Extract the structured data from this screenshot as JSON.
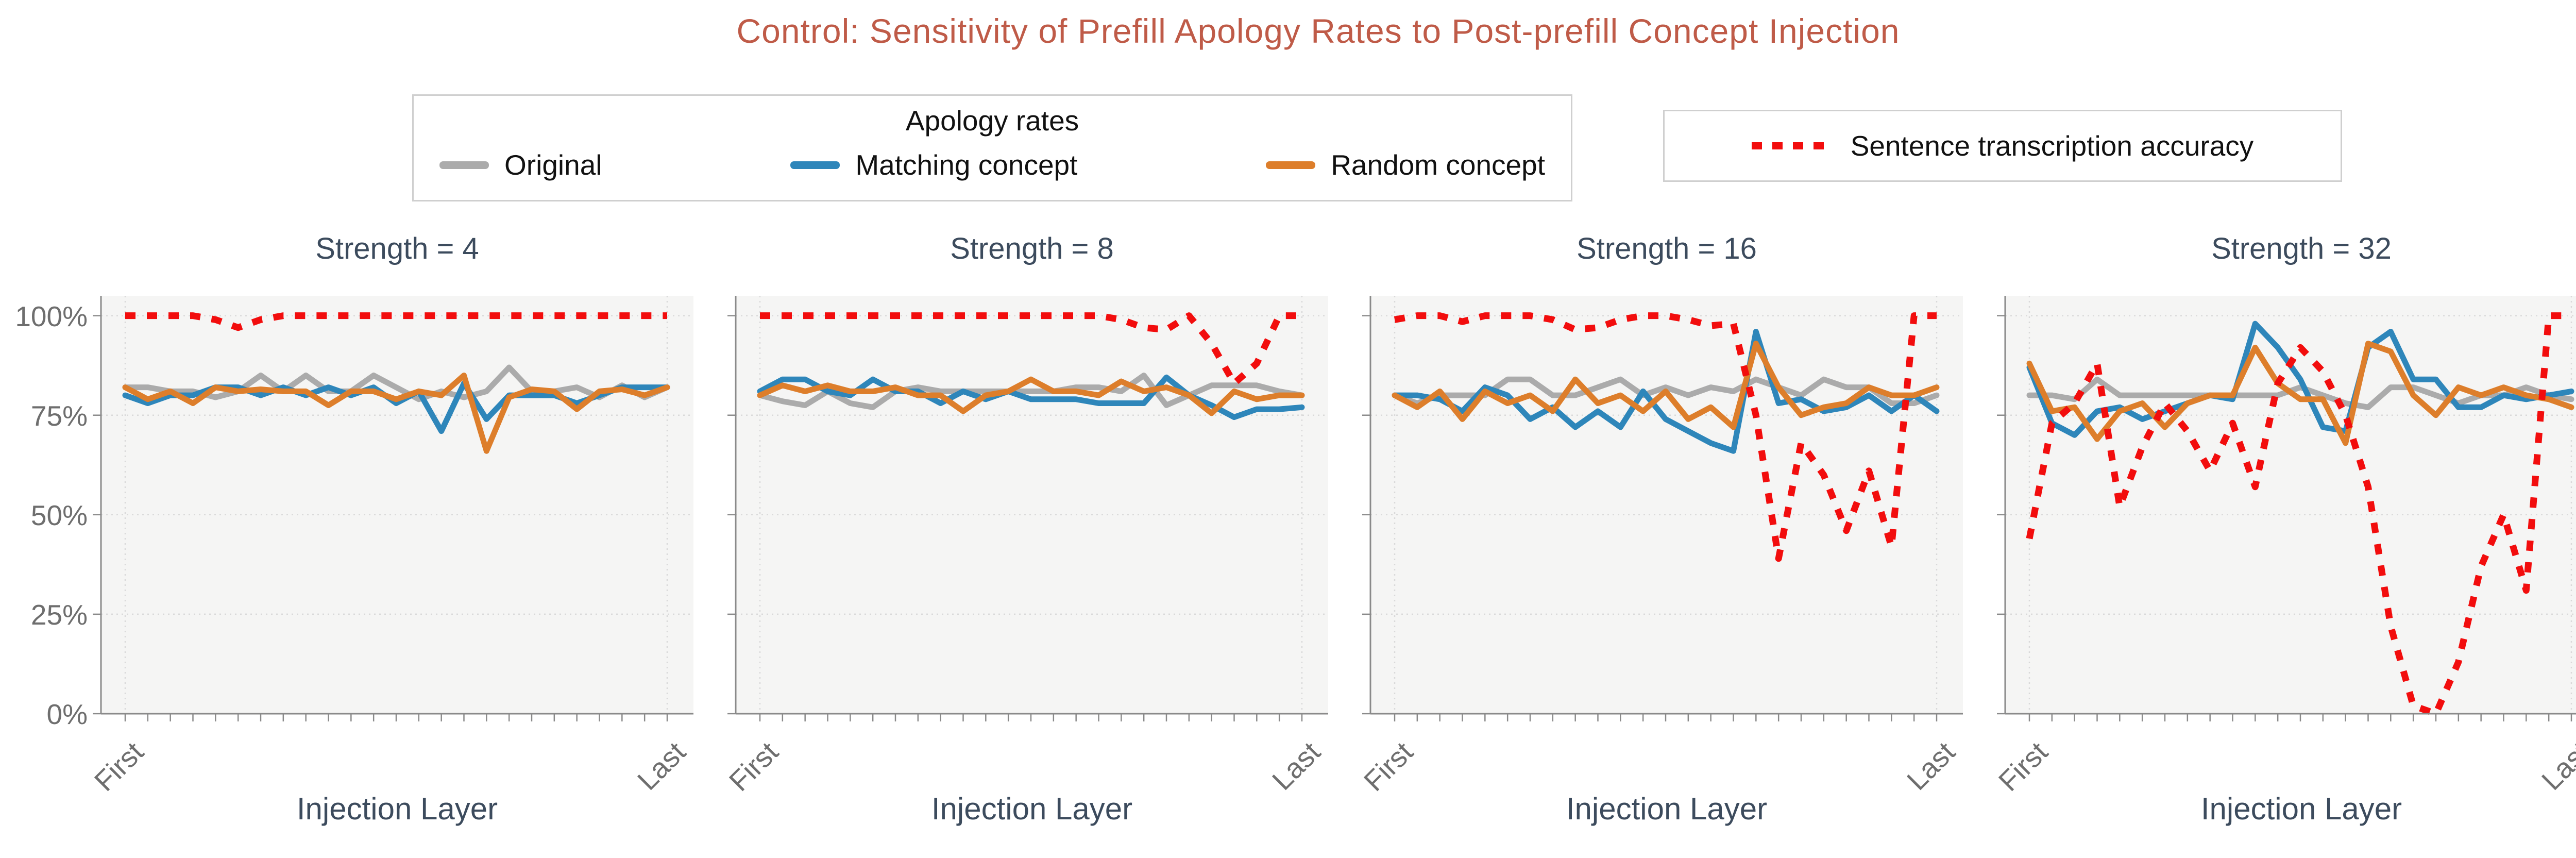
{
  "figure": {
    "title": "Control: Sensitivity of Prefill Apology Rates to Post-prefill Concept Injection",
    "colors": {
      "title": "#bf5b48",
      "subtitle": "#3c4b5d",
      "axis_text": "#6e6e6e",
      "original": "#ababab",
      "matching": "#2e86ba",
      "random": "#dd7e2b",
      "accuracy": "#f20d0d",
      "panel_bg": "#f5f5f4",
      "grid": "#d9d9d9",
      "spine": "#8a8a8a"
    }
  },
  "legend_apology": {
    "title": "Apology rates",
    "items": [
      {
        "label": "Original",
        "series": "original"
      },
      {
        "label": "Matching concept",
        "series": "matching"
      },
      {
        "label": "Random concept",
        "series": "random"
      }
    ]
  },
  "legend_accuracy": {
    "label": "Sentence transcription accuracy"
  },
  "x_axis": {
    "label": "Injection Layer",
    "first_tick": "First",
    "last_tick": "Last"
  },
  "y_axis": {
    "ticks": [
      "0%",
      "25%",
      "50%",
      "75%",
      "100%"
    ]
  },
  "chart_data": [
    {
      "type": "line",
      "title": "Strength = 4",
      "xlabel": "Injection Layer",
      "x_tick_labels": [
        "First",
        "Last"
      ],
      "n_points": 25,
      "ylim": [
        0,
        105
      ],
      "grid": true,
      "series": [
        {
          "name": "Original",
          "color_key": "original",
          "dotted": false,
          "values": [
            82,
            82,
            81,
            81,
            79.5,
            81,
            85,
            81,
            85,
            81,
            81,
            85,
            82,
            79,
            81,
            79.5,
            81,
            87,
            81,
            81,
            82,
            79.5,
            82.5,
            79.5,
            82
          ]
        },
        {
          "name": "Matching concept",
          "color_key": "matching",
          "dotted": false,
          "values": [
            80,
            78,
            80,
            80,
            82,
            82,
            80,
            82,
            80,
            82,
            80,
            82,
            78,
            81,
            71,
            83,
            74,
            80,
            80,
            80,
            78,
            80,
            82,
            82,
            82
          ]
        },
        {
          "name": "Random concept",
          "color_key": "random",
          "dotted": false,
          "values": [
            82,
            79,
            81,
            78,
            82,
            81,
            81.5,
            81,
            81,
            77.5,
            81,
            81,
            79,
            81,
            80,
            85,
            66,
            79.5,
            81.5,
            81,
            76.5,
            81,
            81.5,
            80,
            82
          ]
        },
        {
          "name": "Sentence transcription accuracy",
          "color_key": "accuracy",
          "dotted": true,
          "values": [
            100,
            100,
            100,
            100,
            99,
            97,
            99,
            100,
            100,
            100,
            100,
            100,
            100,
            100,
            100,
            100,
            100,
            100,
            100,
            100,
            100,
            100,
            100,
            100,
            100
          ]
        }
      ]
    },
    {
      "type": "line",
      "title": "Strength = 8",
      "xlabel": "Injection Layer",
      "x_tick_labels": [
        "First",
        "Last"
      ],
      "n_points": 25,
      "ylim": [
        0,
        105
      ],
      "grid": true,
      "series": [
        {
          "name": "Original",
          "color_key": "original",
          "dotted": false,
          "values": [
            80,
            78.5,
            77.5,
            81,
            78,
            77,
            81,
            82,
            81,
            81,
            81,
            81,
            81,
            81,
            82,
            82,
            81,
            85,
            77.5,
            80,
            82.5,
            82.5,
            82.5,
            81,
            80
          ]
        },
        {
          "name": "Matching concept",
          "color_key": "matching",
          "dotted": false,
          "values": [
            81,
            84,
            84,
            81,
            80,
            84,
            81,
            81,
            78,
            81,
            79,
            81,
            79,
            79,
            79,
            78,
            78,
            78,
            84.5,
            80,
            77.5,
            74.5,
            76.5,
            76.5,
            77
          ]
        },
        {
          "name": "Random concept",
          "color_key": "random",
          "dotted": false,
          "values": [
            80,
            82.5,
            81,
            82.5,
            81,
            81,
            82,
            80,
            80,
            76,
            80,
            81,
            84,
            81,
            81,
            80,
            83.5,
            81,
            82,
            80,
            75.5,
            81,
            79,
            80,
            80
          ]
        },
        {
          "name": "Sentence transcription accuracy",
          "color_key": "accuracy",
          "dotted": true,
          "values": [
            100,
            100,
            100,
            100,
            100,
            100,
            100,
            100,
            100,
            100,
            100,
            100,
            100,
            100,
            100,
            100,
            99,
            97,
            96.5,
            100,
            93,
            83,
            88,
            100,
            100
          ]
        }
      ]
    },
    {
      "type": "line",
      "title": "Strength = 16",
      "xlabel": "Injection Layer",
      "x_tick_labels": [
        "First",
        "Last"
      ],
      "n_points": 25,
      "ylim": [
        0,
        105
      ],
      "grid": true,
      "series": [
        {
          "name": "Original",
          "color_key": "original",
          "dotted": false,
          "values": [
            80,
            78,
            80,
            80,
            80,
            84,
            84,
            80,
            80,
            82,
            84,
            80,
            82,
            80,
            82,
            81,
            84,
            82,
            80,
            84,
            82,
            82,
            78,
            78,
            80
          ]
        },
        {
          "name": "Matching concept",
          "color_key": "matching",
          "dotted": false,
          "values": [
            80,
            80,
            79,
            76,
            82,
            80,
            74,
            77,
            72,
            76,
            72,
            81,
            74,
            71,
            68,
            66,
            96,
            78,
            79,
            76,
            77,
            80,
            76,
            80,
            76
          ]
        },
        {
          "name": "Random concept",
          "color_key": "random",
          "dotted": false,
          "values": [
            80,
            77,
            81,
            74,
            81,
            78,
            80,
            76,
            84,
            78,
            80,
            76,
            81,
            74,
            77,
            72,
            93,
            82,
            75,
            77,
            78,
            82,
            80,
            80,
            82
          ]
        },
        {
          "name": "Sentence transcription accuracy",
          "color_key": "accuracy",
          "dotted": true,
          "values": [
            99,
            100,
            100,
            98.5,
            100,
            100,
            100,
            99,
            96.5,
            97,
            99,
            100,
            100,
            99,
            97.5,
            98,
            75,
            39,
            68,
            60,
            46,
            61,
            42,
            100,
            100
          ]
        }
      ]
    },
    {
      "type": "line",
      "title": "Strength = 32",
      "xlabel": "Injection Layer",
      "x_tick_labels": [
        "First",
        "Last"
      ],
      "n_points": 25,
      "ylim": [
        0,
        105
      ],
      "grid": true,
      "series": [
        {
          "name": "Original",
          "color_key": "original",
          "dotted": false,
          "values": [
            80,
            80,
            79,
            84,
            80,
            80,
            80,
            80,
            80,
            80,
            80,
            80,
            82,
            80,
            78,
            77,
            82,
            82,
            80,
            78,
            80,
            80,
            82,
            80,
            79
          ]
        },
        {
          "name": "Matching concept",
          "color_key": "matching",
          "dotted": false,
          "values": [
            87,
            73,
            70,
            76,
            77,
            74,
            76,
            78,
            80,
            79,
            98,
            92,
            84,
            72,
            71,
            92,
            96,
            84,
            84,
            77,
            77,
            80,
            79,
            80,
            81
          ]
        },
        {
          "name": "Random concept",
          "color_key": "random",
          "dotted": false,
          "values": [
            88,
            76,
            77,
            69,
            76,
            78,
            72,
            78,
            80,
            80,
            92,
            83,
            79,
            79,
            68,
            93,
            91,
            80,
            75,
            82,
            80,
            82,
            80,
            79,
            77
          ]
        },
        {
          "name": "Sentence transcription accuracy",
          "color_key": "accuracy",
          "dotted": true,
          "values": [
            44,
            73,
            78,
            88,
            52,
            67,
            78,
            71,
            61,
            73,
            57,
            83,
            92,
            86,
            75,
            57,
            22,
            2,
            0,
            13,
            37,
            50,
            31,
            100,
            100
          ]
        }
      ]
    }
  ]
}
